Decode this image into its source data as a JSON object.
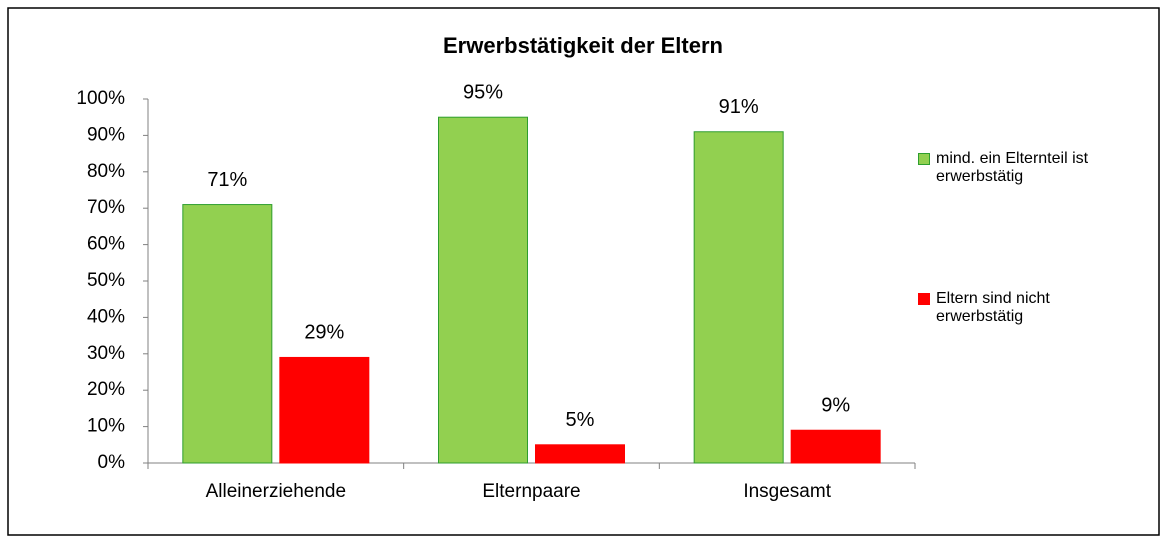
{
  "chart_data": {
    "type": "bar",
    "title": "Erwerbstätigkeit der Eltern",
    "categories": [
      "Alleinerziehende",
      "Elternpaare",
      "Insgesamt"
    ],
    "series": [
      {
        "name": "mind. ein Elternteil ist erwerbstätig",
        "color": "#92d050",
        "values": [
          71,
          95,
          91
        ],
        "value_labels": [
          "71%",
          "95%",
          "91%"
        ]
      },
      {
        "name": "Eltern sind nicht erwerbstätig",
        "color": "#ff0000",
        "values": [
          29,
          5,
          9
        ],
        "value_labels": [
          "29%",
          "5%",
          "9%"
        ]
      }
    ],
    "ylim": [
      0,
      100
    ],
    "yticks": [
      {
        "value": 0,
        "label": "0%"
      },
      {
        "value": 10,
        "label": "10%"
      },
      {
        "value": 20,
        "label": "20%"
      },
      {
        "value": 30,
        "label": "30%"
      },
      {
        "value": 40,
        "label": "40%"
      },
      {
        "value": 50,
        "label": "50%"
      },
      {
        "value": 60,
        "label": "60%"
      },
      {
        "value": 70,
        "label": "70%"
      },
      {
        "value": 80,
        "label": "80%"
      },
      {
        "value": 90,
        "label": "90%"
      },
      {
        "value": 100,
        "label": "100%"
      }
    ],
    "grid": false,
    "legend": "right"
  }
}
